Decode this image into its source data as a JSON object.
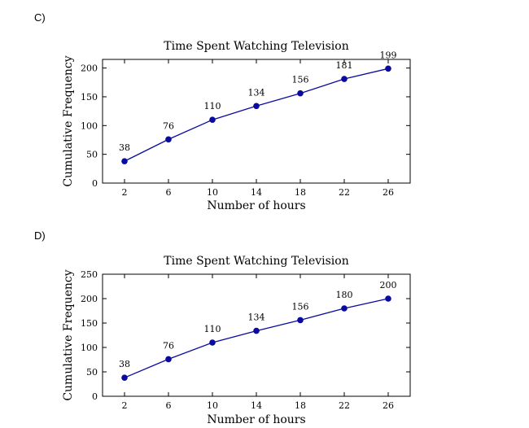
{
  "options": [
    {
      "label": "C)"
    },
    {
      "label": "D)"
    }
  ],
  "chart_data": [
    {
      "type": "line",
      "title": "Time Spent Watching Television",
      "xlabel": "Number of hours",
      "ylabel": "Cumulative Frequency",
      "x": [
        2,
        6,
        10,
        14,
        18,
        22,
        26
      ],
      "series": [
        {
          "values": [
            38,
            76,
            110,
            134,
            156,
            181,
            199
          ]
        }
      ],
      "data_labels": [
        "38",
        "76",
        "110",
        "134",
        "156",
        "181",
        "199"
      ],
      "xticks": [
        2,
        6,
        10,
        14,
        18,
        22,
        26
      ],
      "yticks": [
        0,
        50,
        100,
        150,
        200
      ],
      "xlim": [
        0,
        28
      ],
      "ylim": [
        0,
        215
      ],
      "grid": false,
      "color": "#0a0aa0"
    },
    {
      "type": "line",
      "title": "Time Spent Watching Television",
      "xlabel": "Number of hours",
      "ylabel": "Cumulative Frequency",
      "x": [
        2,
        6,
        10,
        14,
        18,
        22,
        26
      ],
      "series": [
        {
          "values": [
            38,
            76,
            110,
            134,
            156,
            180,
            200
          ]
        }
      ],
      "data_labels": [
        "38",
        "76",
        "110",
        "134",
        "156",
        "180",
        "200"
      ],
      "xticks": [
        2,
        6,
        10,
        14,
        18,
        22,
        26
      ],
      "yticks": [
        0,
        50,
        100,
        150,
        200,
        250
      ],
      "xlim": [
        0,
        28
      ],
      "ylim": [
        0,
        250
      ],
      "grid": false,
      "color": "#0a0aa0"
    }
  ]
}
